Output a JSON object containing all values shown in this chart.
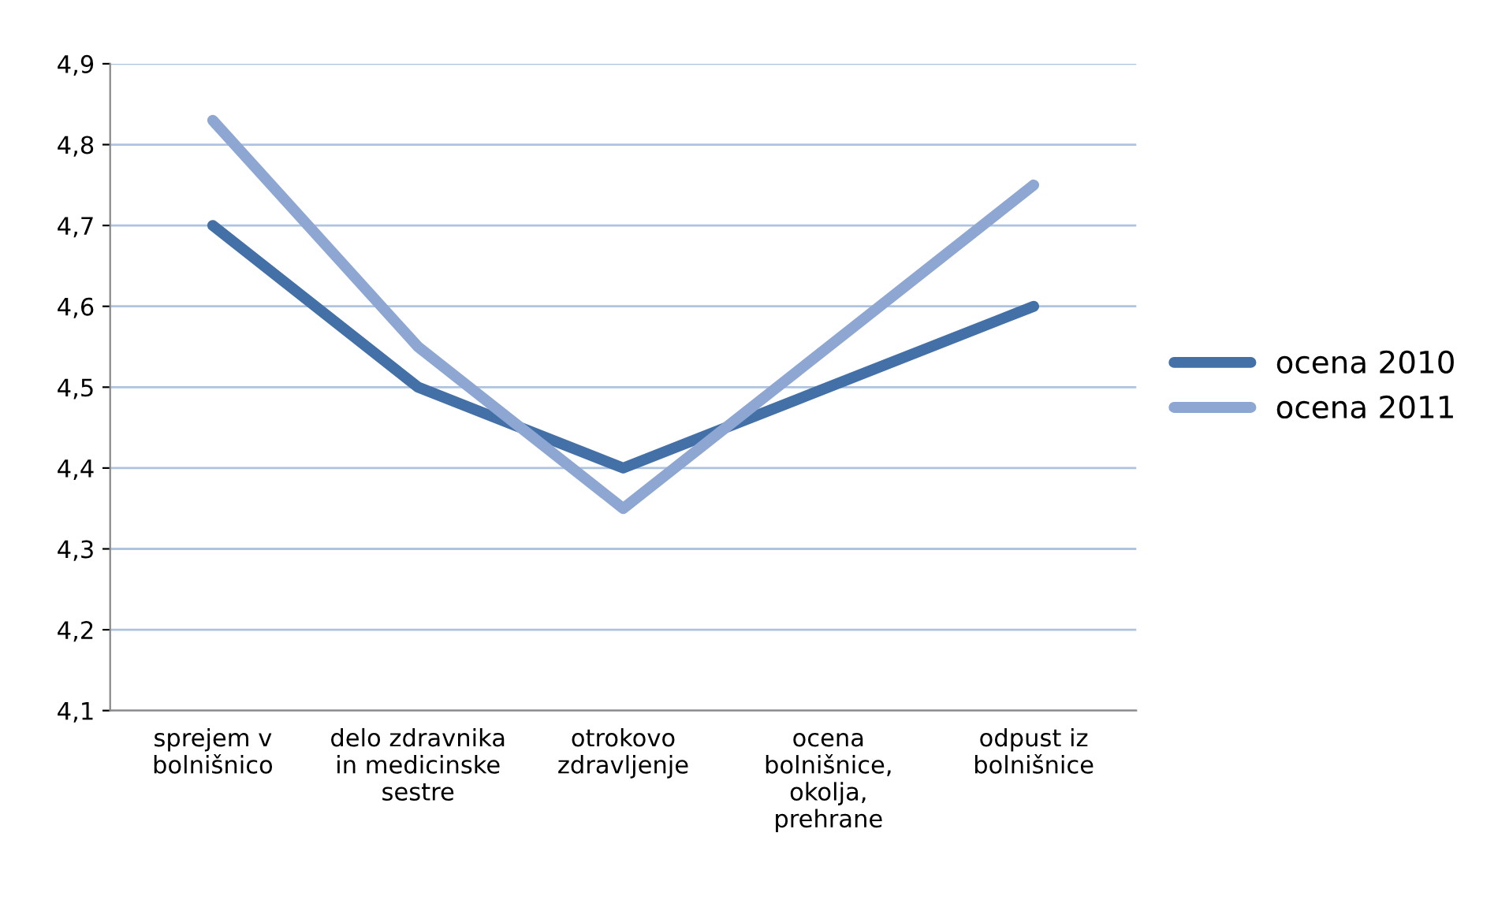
{
  "chart_data": {
    "type": "line",
    "categories": [
      "sprejem v bolnišnico",
      "delo zdravnika in medicinske sestre",
      "otrokovo zdravljenje",
      "ocena bolnišnice, okolja, prehrane",
      "odpust iz bolnišnice"
    ],
    "series": [
      {
        "name": "ocena 2010",
        "color": "#4470a8",
        "values": [
          4.7,
          4.5,
          4.4,
          4.5,
          4.6
        ]
      },
      {
        "name": "ocena 2011",
        "color": "#8ea7d2",
        "values": [
          4.83,
          4.55,
          4.35,
          4.55,
          4.75
        ]
      }
    ],
    "ylim": [
      4.1,
      4.9
    ],
    "yticks": [
      {
        "value": 4.1,
        "label": "4,1"
      },
      {
        "value": 4.2,
        "label": "4,2"
      },
      {
        "value": 4.3,
        "label": "4,3"
      },
      {
        "value": 4.4,
        "label": "4,4"
      },
      {
        "value": 4.5,
        "label": "4,5"
      },
      {
        "value": 4.6,
        "label": "4,6"
      },
      {
        "value": 4.7,
        "label": "4,7"
      },
      {
        "value": 4.8,
        "label": "4,8"
      },
      {
        "value": 4.9,
        "label": "4,9"
      }
    ],
    "grid": "y",
    "legend": "right",
    "marker": "none",
    "line_style": "solid"
  }
}
